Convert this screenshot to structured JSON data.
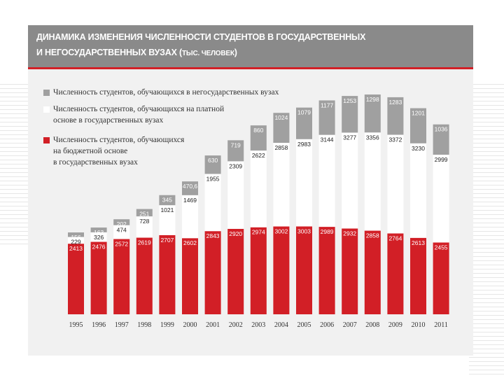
{
  "header": {
    "title_line1": "ДИНАМИКА ИЗМЕНЕНИЯ ЧИСЛЕННОСТИ СТУДЕНТОВ В ГОСУДАРСТВЕННЫХ",
    "title_line2": "И НЕГОСУДАРСТВЕННЫХ ВУЗАХ (",
    "unit": "ТЫС. ЧЕЛОВЕК",
    "close": ")"
  },
  "colors": {
    "header_bg": "#8a8a8a",
    "accent_red": "#d21f26",
    "gray": "#a0a0a0",
    "white": "#ffffff"
  },
  "legend": [
    {
      "lines": [
        "Численность студентов, обучающихся в негосударственных вузах"
      ],
      "color": "#a0a0a0"
    },
    {
      "lines": [
        "Численность студентов, обучающихся на платной",
        "основе в государственных вузах"
      ],
      "color": "#ffffff"
    },
    {
      "lines": [
        "Численность студентов, обучающихся",
        "на бюджетной основе",
        "в государственных вузах"
      ],
      "color": "#d21f26"
    }
  ],
  "chart_data": {
    "type": "bar",
    "stacked": true,
    "categories": [
      "1995",
      "1996",
      "1997",
      "1998",
      "1999",
      "2000",
      "2001",
      "2002",
      "2003",
      "2004",
      "2005",
      "2006",
      "2007",
      "2008",
      "2009",
      "2010",
      "2011"
    ],
    "series": [
      {
        "name": "Численность студентов, обучающихся на бюджетной основе в государственных вузах",
        "color": "#d21f26",
        "values": [
          2413,
          2476,
          2572,
          2619,
          2707,
          2602,
          2843,
          2920,
          2974,
          3002,
          3003,
          2989,
          2932,
          2858,
          2764,
          2613,
          2455
        ]
      },
      {
        "name": "Численность студентов, обучающихся на платной основе в государственных вузах",
        "color": "#ffffff",
        "values": [
          229,
          326,
          474,
          728,
          1021,
          1469,
          1955,
          2309,
          2622,
          2858,
          2983,
          3144,
          3277,
          3356,
          3372,
          3230,
          2999
        ]
      },
      {
        "name": "Численность студентов, обучающихся в негосударственных вузах",
        "color": "#a0a0a0",
        "values": [
          156,
          163,
          202,
          251,
          345,
          470.6,
          630,
          719,
          860,
          1024,
          1079,
          1177,
          1253,
          1298,
          1283,
          1201,
          1036
        ]
      }
    ],
    "title": "ДИНАМИКА ИЗМЕНЕНИЯ ЧИСЛЕННОСТИ СТУДЕНТОВ В ГОСУДАРСТВЕННЫХ И НЕГОСУДАРСТВЕННЫХ ВУЗАХ (ТЫС. ЧЕЛОВЕК)",
    "xlabel": "",
    "ylabel": "",
    "grid": false
  }
}
